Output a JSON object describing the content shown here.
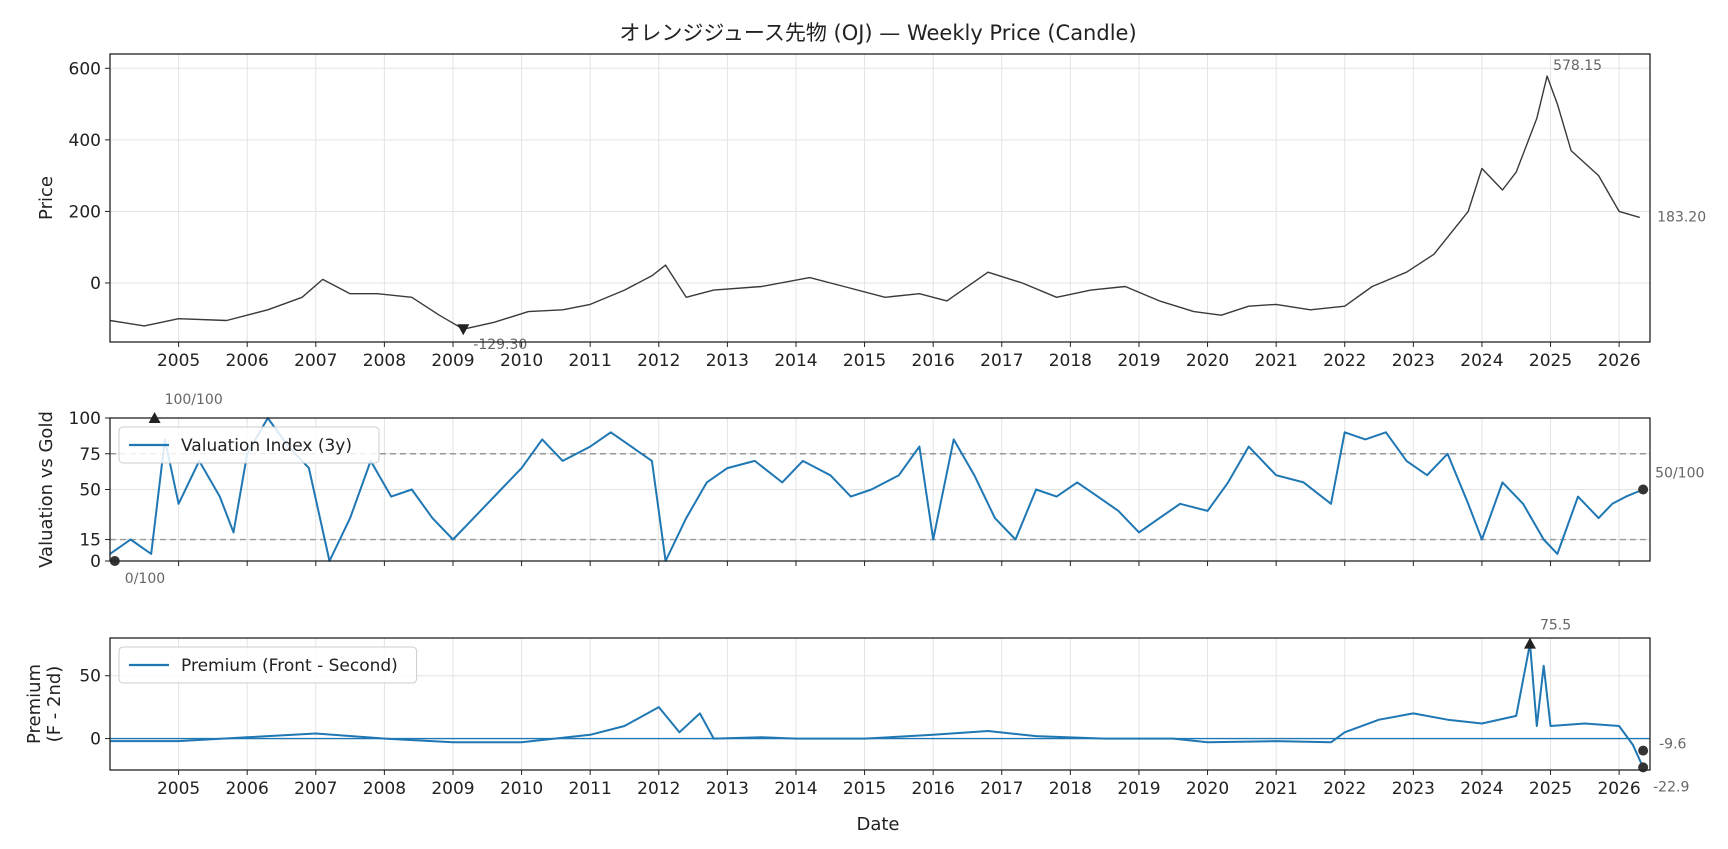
{
  "chart_data": {
    "title": "オレンジジュース先物 (OJ) — Weekly Price (Candle)",
    "xlabel": "Date",
    "x_ticks": [
      "2005",
      "2006",
      "2007",
      "2008",
      "2009",
      "2010",
      "2011",
      "2012",
      "2013",
      "2014",
      "2015",
      "2016",
      "2017",
      "2018",
      "2019",
      "2020",
      "2021",
      "2022",
      "2023",
      "2024",
      "2025",
      "2026"
    ],
    "panels": [
      {
        "type": "line",
        "subtitle": "Weekly Price (Candle)",
        "ylabel": "Price",
        "ylim": [
          -165,
          640
        ],
        "yticks": [
          0,
          200,
          400,
          600
        ],
        "grid": true,
        "series": [
          {
            "color": "#3a3a3a",
            "points": [
              [
                2004.0,
                -105
              ],
              [
                2004.5,
                -120
              ],
              [
                2005.0,
                -100
              ],
              [
                2005.7,
                -105
              ],
              [
                2006.3,
                -75
              ],
              [
                2006.8,
                -40
              ],
              [
                2007.1,
                10
              ],
              [
                2007.5,
                -30
              ],
              [
                2007.9,
                -30
              ],
              [
                2008.4,
                -40
              ],
              [
                2008.8,
                -90
              ],
              [
                2009.15,
                -129.3
              ],
              [
                2009.6,
                -110
              ],
              [
                2010.1,
                -80
              ],
              [
                2010.6,
                -75
              ],
              [
                2011.0,
                -60
              ],
              [
                2011.5,
                -20
              ],
              [
                2011.9,
                20
              ],
              [
                2012.1,
                50
              ],
              [
                2012.4,
                -40
              ],
              [
                2012.8,
                -20
              ],
              [
                2013.5,
                -10
              ],
              [
                2014.2,
                15
              ],
              [
                2014.7,
                -10
              ],
              [
                2015.3,
                -40
              ],
              [
                2015.8,
                -30
              ],
              [
                2016.2,
                -50
              ],
              [
                2016.8,
                30
              ],
              [
                2017.3,
                0
              ],
              [
                2017.8,
                -40
              ],
              [
                2018.3,
                -20
              ],
              [
                2018.8,
                -10
              ],
              [
                2019.3,
                -50
              ],
              [
                2019.8,
                -80
              ],
              [
                2020.2,
                -90
              ],
              [
                2020.6,
                -65
              ],
              [
                2021.0,
                -60
              ],
              [
                2021.5,
                -75
              ],
              [
                2022.0,
                -65
              ],
              [
                2022.4,
                -10
              ],
              [
                2022.9,
                30
              ],
              [
                2023.3,
                80
              ],
              [
                2023.8,
                200
              ],
              [
                2024.0,
                320
              ],
              [
                2024.3,
                260
              ],
              [
                2024.5,
                310
              ],
              [
                2024.8,
                460
              ],
              [
                2024.95,
                578.15
              ],
              [
                2025.1,
                500
              ],
              [
                2025.3,
                370
              ],
              [
                2025.7,
                300
              ],
              [
                2026.0,
                200
              ],
              [
                2026.3,
                183.2
              ]
            ]
          }
        ],
        "annotations": [
          {
            "text": "578.15",
            "x": 2024.95,
            "y": 578.15,
            "marker": "none"
          },
          {
            "text": "183.20",
            "x": 2026.35,
            "y": 183.2,
            "marker": "none"
          },
          {
            "text": "-129.30",
            "x": 2009.15,
            "y": -129.3,
            "marker": "triangle-down"
          }
        ]
      },
      {
        "type": "line",
        "ylabel": "Valuation vs Gold",
        "ylim": [
          0,
          100
        ],
        "yticks": [
          0,
          15,
          50,
          75,
          100
        ],
        "grid": true,
        "reference_lines": [
          15,
          75
        ],
        "legend": {
          "placement": "upper-left"
        },
        "series": [
          {
            "name": "Valuation Index (3y)",
            "color": "#1f77b4",
            "points": [
              [
                2004.0,
                5
              ],
              [
                2004.3,
                15
              ],
              [
                2004.6,
                5
              ],
              [
                2004.8,
                85
              ],
              [
                2005.0,
                40
              ],
              [
                2005.3,
                70
              ],
              [
                2005.6,
                45
              ],
              [
                2005.8,
                20
              ],
              [
                2006.0,
                75
              ],
              [
                2006.3,
                100
              ],
              [
                2006.6,
                80
              ],
              [
                2006.9,
                65
              ],
              [
                2007.2,
                0
              ],
              [
                2007.5,
                30
              ],
              [
                2007.8,
                70
              ],
              [
                2008.1,
                45
              ],
              [
                2008.4,
                50
              ],
              [
                2008.7,
                30
              ],
              [
                2009.0,
                15
              ],
              [
                2009.3,
                30
              ],
              [
                2009.7,
                50
              ],
              [
                2010.0,
                65
              ],
              [
                2010.3,
                85
              ],
              [
                2010.6,
                70
              ],
              [
                2011.0,
                80
              ],
              [
                2011.3,
                90
              ],
              [
                2011.6,
                80
              ],
              [
                2011.9,
                70
              ],
              [
                2012.1,
                0
              ],
              [
                2012.4,
                30
              ],
              [
                2012.7,
                55
              ],
              [
                2013.0,
                65
              ],
              [
                2013.4,
                70
              ],
              [
                2013.8,
                55
              ],
              [
                2014.1,
                70
              ],
              [
                2014.5,
                60
              ],
              [
                2014.8,
                45
              ],
              [
                2015.1,
                50
              ],
              [
                2015.5,
                60
              ],
              [
                2015.8,
                80
              ],
              [
                2016.0,
                15
              ],
              [
                2016.3,
                85
              ],
              [
                2016.6,
                60
              ],
              [
                2016.9,
                30
              ],
              [
                2017.2,
                15
              ],
              [
                2017.5,
                50
              ],
              [
                2017.8,
                45
              ],
              [
                2018.1,
                55
              ],
              [
                2018.4,
                45
              ],
              [
                2018.7,
                35
              ],
              [
                2019.0,
                20
              ],
              [
                2019.3,
                30
              ],
              [
                2019.6,
                40
              ],
              [
                2020.0,
                35
              ],
              [
                2020.3,
                55
              ],
              [
                2020.6,
                80
              ],
              [
                2021.0,
                60
              ],
              [
                2021.4,
                55
              ],
              [
                2021.8,
                40
              ],
              [
                2022.0,
                90
              ],
              [
                2022.3,
                85
              ],
              [
                2022.6,
                90
              ],
              [
                2022.9,
                70
              ],
              [
                2023.2,
                60
              ],
              [
                2023.5,
                75
              ],
              [
                2023.8,
                40
              ],
              [
                2024.0,
                15
              ],
              [
                2024.3,
                55
              ],
              [
                2024.6,
                40
              ],
              [
                2024.9,
                15
              ],
              [
                2025.1,
                5
              ],
              [
                2025.4,
                45
              ],
              [
                2025.7,
                30
              ],
              [
                2025.9,
                40
              ],
              [
                2026.1,
                45
              ],
              [
                2026.35,
                50
              ]
            ]
          }
        ],
        "annotations": [
          {
            "text": "100/100",
            "x": 2004.65,
            "y": 100,
            "marker": "triangle-up"
          },
          {
            "text": "0/100",
            "x": 2004.07,
            "y": 0,
            "marker": "circle"
          },
          {
            "text": "50/100",
            "x": 2026.35,
            "y": 50,
            "marker": "circle"
          }
        ]
      },
      {
        "type": "line",
        "ylabel": "Premium\n(F - 2nd)",
        "ylim": [
          -25,
          80
        ],
        "yticks": [
          0,
          50
        ],
        "grid": true,
        "legend": {
          "placement": "upper-left"
        },
        "series": [
          {
            "name": "Premium (Front - Second)",
            "color": "#1f77b4",
            "points": [
              [
                2004.0,
                -2
              ],
              [
                2005.0,
                -2
              ],
              [
                2006.0,
                1
              ],
              [
                2007.0,
                4
              ],
              [
                2008.0,
                0
              ],
              [
                2009.0,
                -3
              ],
              [
                2010.0,
                -3
              ],
              [
                2011.0,
                3
              ],
              [
                2011.5,
                10
              ],
              [
                2012.0,
                25
              ],
              [
                2012.3,
                5
              ],
              [
                2012.6,
                20
              ],
              [
                2012.8,
                0
              ],
              [
                2013.5,
                1
              ],
              [
                2014.0,
                0
              ],
              [
                2015.0,
                0
              ],
              [
                2016.0,
                3
              ],
              [
                2016.8,
                6
              ],
              [
                2017.5,
                2
              ],
              [
                2018.5,
                0
              ],
              [
                2019.5,
                0
              ],
              [
                2020.0,
                -3
              ],
              [
                2021.0,
                -2
              ],
              [
                2021.8,
                -3
              ],
              [
                2022.0,
                5
              ],
              [
                2022.5,
                15
              ],
              [
                2023.0,
                20
              ],
              [
                2023.5,
                15
              ],
              [
                2024.0,
                12
              ],
              [
                2024.5,
                18
              ],
              [
                2024.7,
                75.5
              ],
              [
                2024.8,
                10
              ],
              [
                2024.9,
                58
              ],
              [
                2025.0,
                10
              ],
              [
                2025.5,
                12
              ],
              [
                2026.0,
                10
              ],
              [
                2026.2,
                -5
              ],
              [
                2026.35,
                -22.9
              ]
            ]
          }
        ],
        "annotations": [
          {
            "text": "75.5",
            "x": 2024.7,
            "y": 75.5,
            "marker": "triangle-up"
          },
          {
            "text": "-9.6",
            "x": 2026.35,
            "y": -9.6,
            "marker": "circle"
          },
          {
            "text": "-22.9",
            "x": 2026.35,
            "y": -22.9,
            "marker": "circle"
          }
        ]
      }
    ]
  }
}
